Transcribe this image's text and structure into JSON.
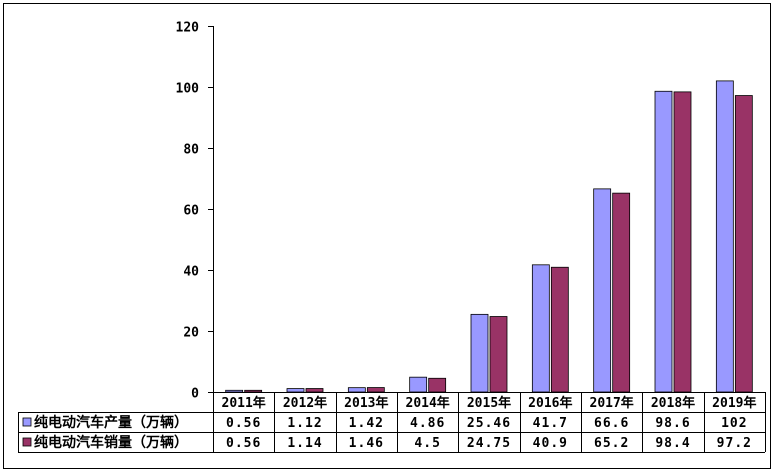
{
  "chart_data": {
    "type": "bar",
    "categories": [
      "2011年",
      "2012年",
      "2013年",
      "2014年",
      "2015年",
      "2016年",
      "2017年",
      "2018年",
      "2019年"
    ],
    "series": [
      {
        "name": "纯电动汽车产量（万辆）",
        "values": [
          0.56,
          1.12,
          1.42,
          4.86,
          25.46,
          41.7,
          66.6,
          98.6,
          102
        ],
        "labels": [
          "0.56",
          "1.12",
          "1.42",
          "4.86",
          "25.46",
          "41.7",
          "66.6",
          "98.6",
          "102"
        ],
        "color": "#9999ff"
      },
      {
        "name": "纯电动汽车销量（万辆）",
        "values": [
          0.56,
          1.14,
          1.46,
          4.5,
          24.75,
          40.9,
          65.2,
          98.4,
          97.2
        ],
        "labels": [
          "0.56",
          "1.14",
          "1.46",
          "4.5",
          "24.75",
          "40.9",
          "65.2",
          "98.4",
          "97.2"
        ],
        "color": "#993366"
      }
    ],
    "ylim": [
      0,
      120
    ],
    "yticks": [
      "0",
      "20",
      "40",
      "60",
      "80",
      "100",
      "120"
    ],
    "ytick_values": [
      0,
      20,
      40,
      60,
      80,
      100,
      120
    ],
    "grid": false,
    "legend": "data-table"
  }
}
